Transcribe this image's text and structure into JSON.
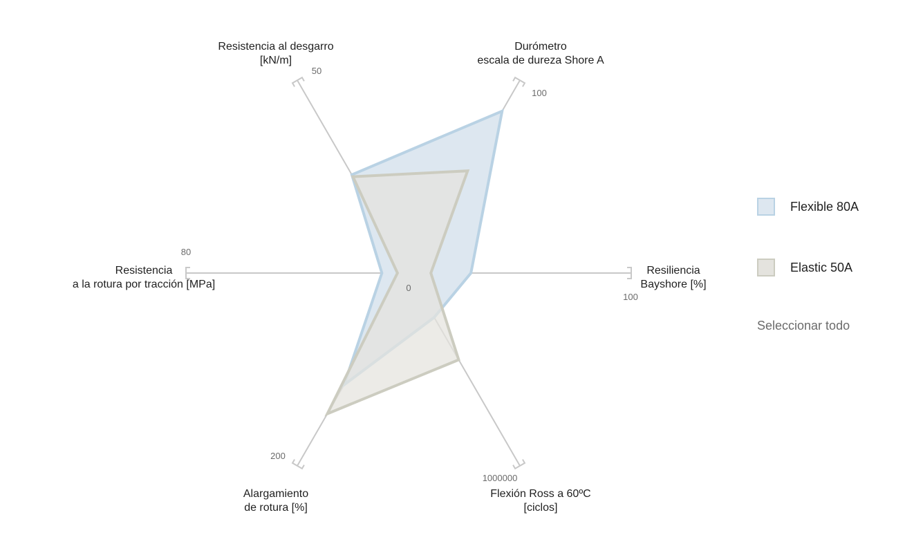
{
  "chart_data": {
    "type": "radar",
    "axes": [
      {
        "label": [
          "Resistencia al desgarro",
          "[kN/m]"
        ],
        "max_label": "50"
      },
      {
        "label": [
          "Durómetro",
          "escala de dureza Shore A"
        ],
        "max_label": "100"
      },
      {
        "label": [
          "Resiliencia",
          "Bayshore [%]"
        ],
        "max_label": "100"
      },
      {
        "label": [
          "Flexión Ross a 60ºC",
          "[ciclos]"
        ],
        "max_label": "1000000"
      },
      {
        "label": [
          "Alargamiento",
          "de rotura [%]"
        ],
        "max_label": "200"
      },
      {
        "label": [
          "Resistencia",
          "a la rotura por tracción [MPa]"
        ],
        "max_label": "80"
      }
    ],
    "center_label": "0",
    "series": [
      {
        "name": "Flexible 80A",
        "values_fraction": [
          0.51,
          0.84,
          0.28,
          0.23,
          0.58,
          0.12
        ],
        "fill": "#dde7f0",
        "stroke": "#b9d2e4"
      },
      {
        "name": "Elastic 50A",
        "values_fraction": [
          0.5,
          0.53,
          0.1,
          0.45,
          0.73,
          0.05
        ],
        "fill": "#e4e3de",
        "stroke": "#ccccc0"
      }
    ]
  },
  "legend": {
    "items": [
      {
        "label": "Flexible 80A",
        "fill": "#dde7f0",
        "border": "#b9d2e4"
      },
      {
        "label": "Elastic 50A",
        "fill": "#e4e3de",
        "border": "#ccccc0"
      }
    ],
    "select_all": "Seleccionar todo"
  },
  "colors": {
    "axis": "#c8c8c8",
    "text": "#1f1f1f",
    "muted": "#6b6b6b"
  }
}
